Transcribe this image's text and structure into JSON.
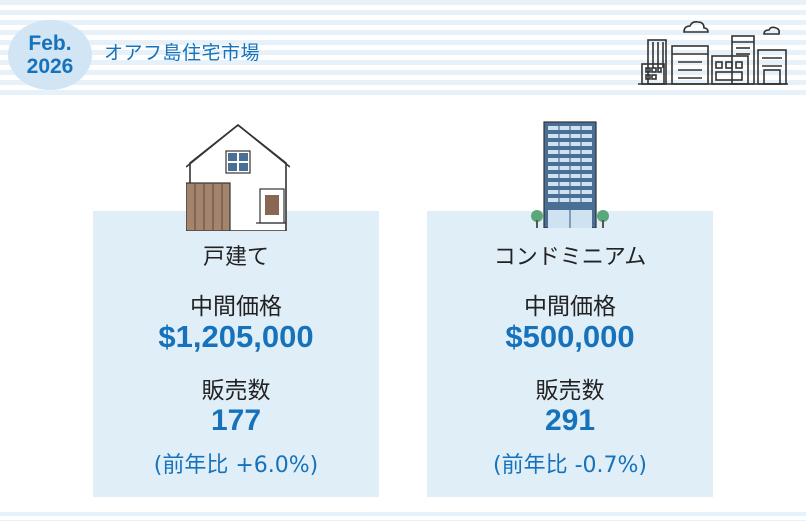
{
  "header": {
    "date_month": "Feb.",
    "date_year": "2026",
    "title": "オアフ島住宅市場"
  },
  "cards": [
    {
      "type": "戸建て",
      "price_label": "中間価格",
      "price": "$1,205,000",
      "sales_label": "販売数",
      "sales": "177",
      "change": "(前年比 +6.0%)",
      "icon": "house-icon"
    },
    {
      "type": "コンドミニアム",
      "price_label": "中間価格",
      "price": "$500,000",
      "sales_label": "販売数",
      "sales": "291",
      "change": "(前年比 -0.7%)",
      "icon": "condo-tower-icon"
    }
  ],
  "colors": {
    "accent": "#1673bb",
    "card_bg": "#e0eef8",
    "badge_bg": "#d2e5f4"
  }
}
